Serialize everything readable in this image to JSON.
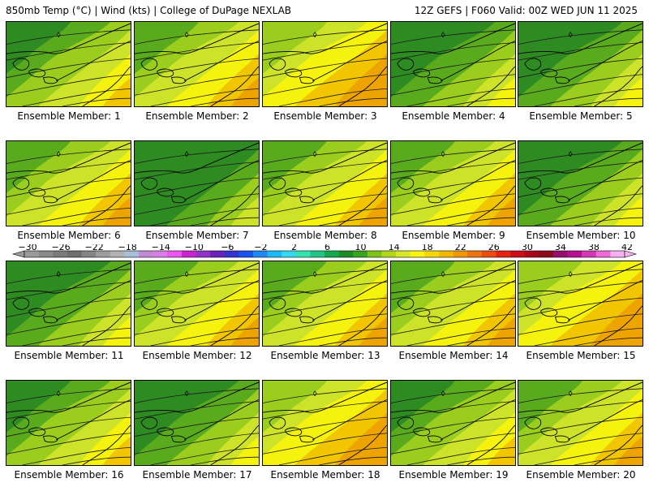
{
  "header": {
    "left": "850mb Temp (°C) | Wind (kts) | College of DuPage NEXLAB",
    "right": "12Z GEFS | F060 Valid: 00Z WED JUN 11 2025"
  },
  "panels": [
    {
      "label": "Ensemble Member: 1",
      "tint": 0
    },
    {
      "label": "Ensemble Member: 2",
      "tint": 1
    },
    {
      "label": "Ensemble Member: 3",
      "tint": 2
    },
    {
      "label": "Ensemble Member: 4",
      "tint": -1
    },
    {
      "label": "Ensemble Member: 5",
      "tint": -1
    },
    {
      "label": "Ensemble Member: 6",
      "tint": 1
    },
    {
      "label": "Ensemble Member: 7",
      "tint": -2
    },
    {
      "label": "Ensemble Member: 8",
      "tint": 1
    },
    {
      "label": "Ensemble Member: 9",
      "tint": 1
    },
    {
      "label": "Ensemble Member: 10",
      "tint": -1
    },
    {
      "label": "Ensemble Member: 11",
      "tint": -1
    },
    {
      "label": "Ensemble Member: 12",
      "tint": 1
    },
    {
      "label": "Ensemble Member: 13",
      "tint": 1
    },
    {
      "label": "Ensemble Member: 14",
      "tint": 1
    },
    {
      "label": "Ensemble Member: 15",
      "tint": 2
    },
    {
      "label": "Ensemble Member: 16",
      "tint": 0
    },
    {
      "label": "Ensemble Member: 17",
      "tint": -1
    },
    {
      "label": "Ensemble Member: 18",
      "tint": 2
    },
    {
      "label": "Ensemble Member: 19",
      "tint": 0
    },
    {
      "label": "Ensemble Member: 20",
      "tint": 1
    }
  ],
  "colorbar": {
    "tick_labels": [
      "-30",
      "-26",
      "-22",
      "-18",
      "-14",
      "-10",
      "-6",
      "-2",
      "2",
      "6",
      "10",
      "14",
      "18",
      "22",
      "26",
      "30",
      "34",
      "38",
      "42"
    ],
    "colors": [
      "#9a9a9a",
      "#8a8a8a",
      "#7a7a7a",
      "#6e6e6e",
      "#848484",
      "#9c9c9c",
      "#b2b2b2",
      "#a7bed8",
      "#c08ad0",
      "#d87ee6",
      "#ee55ee",
      "#cc22cc",
      "#8e34c8",
      "#6a22bc",
      "#3434d0",
      "#1c52ec",
      "#1e88f4",
      "#1eb8f4",
      "#36d8f0",
      "#34e2b0",
      "#22c486",
      "#16a84e",
      "#1a8c22",
      "#3aa41e",
      "#7cc21a",
      "#b2d71a",
      "#d6e828",
      "#f8f410",
      "#f4d800",
      "#f2b800",
      "#f09600",
      "#ee7212",
      "#ea4c12",
      "#e42414",
      "#cc0c16",
      "#a80818",
      "#8c0c1c",
      "#96106a",
      "#b8108e",
      "#d636b6",
      "#ee6ad6",
      "#f8b0ee"
    ]
  },
  "colors": {
    "dark_green": "#2e8b22",
    "mid_green": "#5aaa1e",
    "light_green": "#9acd1e",
    "yellow_green": "#cde32a",
    "yellow": "#f5f20e",
    "gold": "#f1c600",
    "orange": "#eda400"
  }
}
